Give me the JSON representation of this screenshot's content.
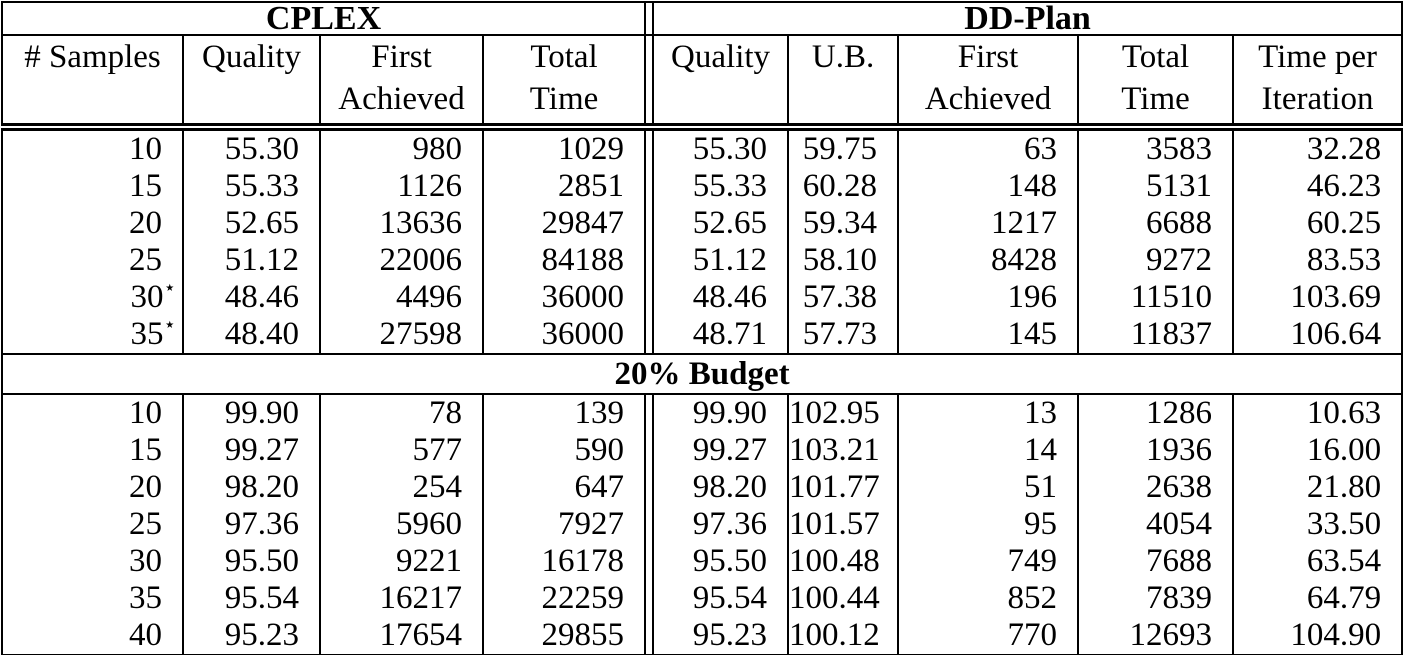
{
  "table": {
    "border_color": "#000000",
    "text_color": "#000000",
    "background_color": "#ffffff",
    "star_symbol": "⋆",
    "groups": [
      {
        "label": "CPLEX",
        "colspan": 4
      },
      {
        "label": "DD-Plan",
        "colspan": 5
      }
    ],
    "columns": [
      {
        "id": "samples",
        "lines": [
          "# Samples"
        ]
      },
      {
        "id": "cplex-quality",
        "lines": [
          "Quality"
        ]
      },
      {
        "id": "cplex-first-achieved",
        "lines": [
          "First",
          "Achieved"
        ]
      },
      {
        "id": "cplex-total-time",
        "lines": [
          "Total",
          "Time"
        ]
      },
      {
        "id": "ddplan-quality",
        "lines": [
          "Quality"
        ]
      },
      {
        "id": "ddplan-ub",
        "lines": [
          "U.B."
        ]
      },
      {
        "id": "ddplan-first-achieved",
        "lines": [
          "First",
          "Achieved"
        ]
      },
      {
        "id": "ddplan-total-time",
        "lines": [
          "Total",
          "Time"
        ]
      },
      {
        "id": "ddplan-time-per-iteration",
        "lines": [
          "Time per",
          "Iteration"
        ]
      }
    ],
    "sections": [
      {
        "title": null,
        "rows": [
          {
            "samples": "10",
            "star": false,
            "values": [
              "55.30",
              "980",
              "1029",
              "55.30",
              "59.75",
              "63",
              "3583",
              "32.28"
            ]
          },
          {
            "samples": "15",
            "star": false,
            "values": [
              "55.33",
              "1126",
              "2851",
              "55.33",
              "60.28",
              "148",
              "5131",
              "46.23"
            ]
          },
          {
            "samples": "20",
            "star": false,
            "values": [
              "52.65",
              "13636",
              "29847",
              "52.65",
              "59.34",
              "1217",
              "6688",
              "60.25"
            ]
          },
          {
            "samples": "25",
            "star": false,
            "values": [
              "51.12",
              "22006",
              "84188",
              "51.12",
              "58.10",
              "8428",
              "9272",
              "83.53"
            ]
          },
          {
            "samples": "30",
            "star": true,
            "values": [
              "48.46",
              "4496",
              "36000",
              "48.46",
              "57.38",
              "196",
              "11510",
              "103.69"
            ]
          },
          {
            "samples": "35",
            "star": true,
            "values": [
              "48.40",
              "27598",
              "36000",
              "48.71",
              "57.73",
              "145",
              "11837",
              "106.64"
            ]
          }
        ]
      },
      {
        "title": "20% Budget",
        "rows": [
          {
            "samples": "10",
            "star": false,
            "values": [
              "99.90",
              "78",
              "139",
              "99.90",
              "102.95",
              "13",
              "1286",
              "10.63"
            ]
          },
          {
            "samples": "15",
            "star": false,
            "values": [
              "99.27",
              "577",
              "590",
              "99.27",
              "103.21",
              "14",
              "1936",
              "16.00"
            ]
          },
          {
            "samples": "20",
            "star": false,
            "values": [
              "98.20",
              "254",
              "647",
              "98.20",
              "101.77",
              "51",
              "2638",
              "21.80"
            ]
          },
          {
            "samples": "25",
            "star": false,
            "values": [
              "97.36",
              "5960",
              "7927",
              "97.36",
              "101.57",
              "95",
              "4054",
              "33.50"
            ]
          },
          {
            "samples": "30",
            "star": false,
            "values": [
              "95.50",
              "9221",
              "16178",
              "95.50",
              "100.48",
              "749",
              "7688",
              "63.54"
            ]
          },
          {
            "samples": "35",
            "star": false,
            "values": [
              "95.54",
              "16217",
              "22259",
              "95.54",
              "100.44",
              "852",
              "7839",
              "64.79"
            ]
          },
          {
            "samples": "40",
            "star": false,
            "values": [
              "95.23",
              "17654",
              "29855",
              "95.23",
              "100.12",
              "770",
              "12693",
              "104.90"
            ]
          }
        ]
      }
    ]
  }
}
